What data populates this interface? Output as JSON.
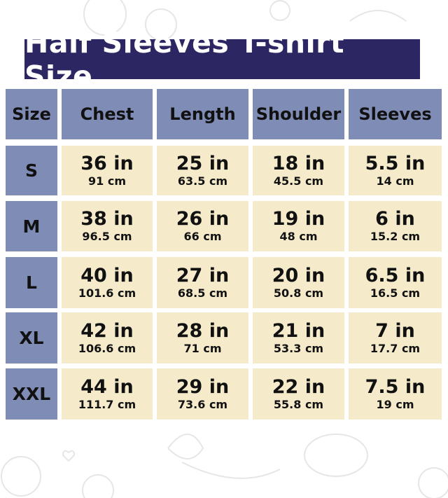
{
  "title": "Half Sleeves T-shirt Size",
  "colors": {
    "title_bg": "#2c2763",
    "header_bg": "#7f8cb6",
    "cell_bg": "#f5ebcb"
  },
  "headers": [
    "Size",
    "Chest",
    "Length",
    "Shoulder",
    "Sleeves"
  ],
  "rows": [
    {
      "size": "S",
      "cells": [
        {
          "in": "36 in",
          "cm": "91 cm"
        },
        {
          "in": "25 in",
          "cm": "63.5 cm"
        },
        {
          "in": "18 in",
          "cm": "45.5 cm"
        },
        {
          "in": "5.5 in",
          "cm": "14 cm"
        }
      ]
    },
    {
      "size": "M",
      "cells": [
        {
          "in": "38 in",
          "cm": "96.5 cm"
        },
        {
          "in": "26 in",
          "cm": "66 cm"
        },
        {
          "in": "19 in",
          "cm": "48 cm"
        },
        {
          "in": "6 in",
          "cm": "15.2 cm"
        }
      ]
    },
    {
      "size": "L",
      "cells": [
        {
          "in": "40 in",
          "cm": "101.6 cm"
        },
        {
          "in": "27 in",
          "cm": "68.5 cm"
        },
        {
          "in": "20 in",
          "cm": "50.8 cm"
        },
        {
          "in": "6.5 in",
          "cm": "16.5 cm"
        }
      ]
    },
    {
      "size": "XL",
      "cells": [
        {
          "in": "42 in",
          "cm": "106.6 cm"
        },
        {
          "in": "28 in",
          "cm": "71 cm"
        },
        {
          "in": "21 in",
          "cm": "53.3 cm"
        },
        {
          "in": "7 in",
          "cm": "17.7 cm"
        }
      ]
    },
    {
      "size": "XXL",
      "cells": [
        {
          "in": "44 in",
          "cm": "111.7 cm"
        },
        {
          "in": "29 in",
          "cm": "73.6 cm"
        },
        {
          "in": "22 in",
          "cm": "55.8 cm"
        },
        {
          "in": "7.5 in",
          "cm": "19 cm"
        }
      ]
    }
  ]
}
